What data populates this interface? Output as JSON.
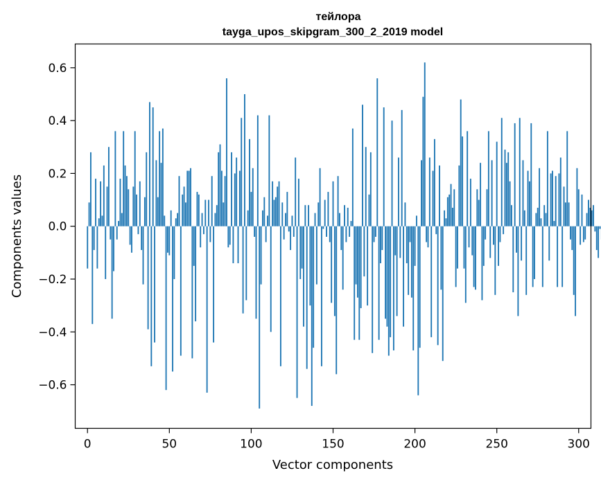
{
  "chart_data": {
    "type": "bar",
    "title": "тейлора",
    "subtitle": "tayga_upos_skipgram_300_2_2019 model",
    "xlabel": "Vector components",
    "ylabel": "Components values",
    "xlim": [
      -7.5,
      307.5
    ],
    "ylim": [
      -0.765,
      0.69
    ],
    "xticks": [
      0,
      50,
      100,
      150,
      200,
      250,
      300
    ],
    "xtick_labels": [
      "0",
      "50",
      "100",
      "150",
      "200",
      "250",
      "300"
    ],
    "yticks": [
      -0.6,
      -0.4,
      -0.2,
      0.0,
      0.2,
      0.4,
      0.6
    ],
    "ytick_labels": [
      "−0.6",
      "−0.4",
      "−0.2",
      "0.0",
      "0.2",
      "0.4",
      "0.6"
    ],
    "grid": false,
    "bar_color": "#1f77b4",
    "values": [
      -0.16,
      0.09,
      0.28,
      -0.37,
      -0.09,
      0.18,
      -0.16,
      0.03,
      0.17,
      0.04,
      0.23,
      -0.2,
      0.15,
      0.3,
      -0.05,
      -0.35,
      -0.17,
      0.36,
      -0.05,
      0.02,
      0.18,
      0.05,
      0.36,
      0.23,
      0.19,
      0.14,
      -0.07,
      -0.1,
      0.15,
      0.36,
      0.12,
      -0.03,
      0.17,
      -0.09,
      -0.22,
      0.11,
      0.28,
      -0.39,
      0.47,
      -0.53,
      0.45,
      -0.44,
      0.25,
      0.11,
      0.36,
      0.24,
      0.37,
      0.04,
      -0.62,
      -0.1,
      -0.11,
      0.06,
      -0.55,
      -0.2,
      0.03,
      0.05,
      0.19,
      -0.49,
      0.12,
      0.15,
      0.09,
      0.21,
      0.21,
      0.22,
      -0.5,
      -0.15,
      -0.36,
      0.13,
      0.12,
      -0.08,
      0.05,
      -0.03,
      0.1,
      -0.63,
      0.1,
      -0.06,
      0.19,
      -0.44,
      0.05,
      0.08,
      0.28,
      0.31,
      0.21,
      0.09,
      0.19,
      0.56,
      -0.08,
      -0.07,
      0.28,
      -0.14,
      0.2,
      0.26,
      -0.14,
      0.21,
      0.41,
      -0.33,
      0.5,
      -0.28,
      0.06,
      0.33,
      0.13,
      0.22,
      -0.04,
      -0.35,
      0.42,
      -0.69,
      -0.22,
      0.06,
      0.11,
      -0.06,
      0.04,
      0.42,
      -0.4,
      0.17,
      0.1,
      0.11,
      0.15,
      0.17,
      -0.53,
      0.09,
      -0.05,
      0.05,
      0.13,
      -0.02,
      -0.09,
      0.04,
      -0.04,
      0.26,
      -0.65,
      0.18,
      -0.2,
      -0.16,
      -0.38,
      0.08,
      -0.54,
      0.08,
      -0.3,
      -0.68,
      -0.46,
      0.05,
      -0.22,
      0.09,
      0.22,
      -0.53,
      -0.01,
      0.1,
      -0.04,
      0.13,
      -0.06,
      -0.29,
      0.17,
      -0.34,
      -0.56,
      0.19,
      0.05,
      -0.09,
      -0.24,
      0.08,
      -0.06,
      0.07,
      -0.04,
      0.02,
      0.37,
      -0.43,
      -0.22,
      -0.27,
      -0.43,
      -0.31,
      0.46,
      -0.19,
      0.3,
      -0.3,
      0.12,
      0.28,
      -0.48,
      -0.06,
      -0.04,
      0.56,
      -0.43,
      -0.14,
      -0.09,
      0.45,
      -0.35,
      -0.38,
      -0.49,
      -0.42,
      0.4,
      -0.47,
      -0.11,
      -0.34,
      0.26,
      -0.12,
      0.44,
      -0.38,
      0.09,
      -0.14,
      -0.26,
      -0.06,
      -0.27,
      -0.47,
      -0.15,
      0.04,
      -0.64,
      -0.46,
      0.25,
      0.49,
      0.62,
      -0.06,
      -0.08,
      0.26,
      -0.42,
      0.21,
      0.33,
      -0.03,
      -0.45,
      0.23,
      -0.24,
      -0.51,
      0.06,
      0.03,
      0.11,
      0.12,
      0.16,
      0.07,
      0.14,
      -0.23,
      -0.16,
      0.23,
      0.48,
      0.34,
      -0.16,
      -0.29,
      0.36,
      -0.08,
      0.18,
      -0.11,
      -0.23,
      -0.24,
      0.14,
      0.1,
      0.24,
      -0.28,
      -0.15,
      -0.05,
      0.14,
      0.36,
      -0.12,
      0.25,
      -0.07,
      -0.26,
      0.32,
      -0.15,
      -0.06,
      0.41,
      -0.03,
      0.29,
      0.24,
      0.28,
      0.17,
      0.08,
      -0.25,
      0.39,
      -0.1,
      -0.34,
      0.41,
      -0.13,
      0.25,
      0.06,
      -0.26,
      0.21,
      0.17,
      0.39,
      -0.23,
      -0.2,
      0.05,
      0.07,
      0.22,
      0.03,
      -0.23,
      0.08,
      0.05,
      0.36,
      -0.13,
      0.2,
      0.21,
      0.02,
      0.19,
      -0.23,
      0.2,
      0.26,
      -0.23,
      0.15,
      0.09,
      0.36,
      0.09,
      -0.05,
      -0.09,
      -0.26,
      -0.34,
      0.22,
      0.14,
      -0.07,
      0.12,
      -0.06,
      -0.05,
      0.05,
      0.1,
      0.07,
      0.06,
      0.08,
      -0.02,
      -0.09,
      -0.12,
      -0.01,
      -0.05
    ]
  }
}
